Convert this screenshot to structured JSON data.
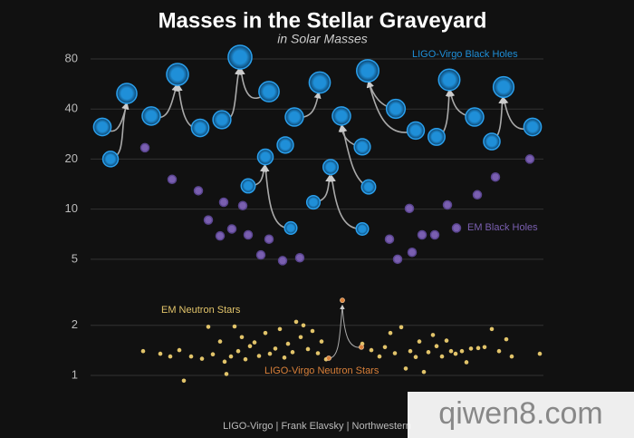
{
  "chart_data": {
    "type": "scatter",
    "title": "Masses in the Stellar Graveyard",
    "subtitle": "in Solar Masses",
    "log_y": true,
    "grid": true,
    "xlim": [
      0,
      100
    ],
    "ylim": [
      1,
      80
    ],
    "yticks": [
      1,
      2,
      5,
      10,
      20,
      40,
      80
    ],
    "series": [
      {
        "name": "LIGO-Virgo Black Holes",
        "color": "#1f8fd8",
        "x": [
          2.6,
          4.4,
          8,
          13.4,
          19.2,
          24.2,
          29,
          33,
          39.4,
          43,
          45,
          50.6,
          55.4,
          60,
          61.2,
          67.4,
          71.8,
          76.4,
          79.2,
          84.8,
          88.6,
          91.2,
          97.6,
          38.6,
          53,
          34.8,
          61.4,
          44.2,
          49.2,
          60
        ],
        "values": [
          31.2,
          20,
          49.6,
          36.3,
          64.6,
          30.8,
          34.5,
          82,
          50.9,
          24.3,
          35.8,
          57.7,
          36.3,
          23.7,
          67.9,
          40.1,
          29.7,
          27.2,
          59.9,
          35.8,
          25.5,
          54.2,
          31.2,
          20.6,
          17.9,
          13.8,
          13.6,
          7.7,
          11,
          7.6
        ]
      },
      {
        "name": "EM Black Holes",
        "color": "#7a5fb0",
        "x": [
          12,
          18,
          23.8,
          29.4,
          26,
          28.6,
          31.2,
          33.6,
          34.8,
          37.6,
          39.4,
          42.4,
          46.2,
          66,
          67.8,
          71,
          70.4,
          73.2,
          76,
          78.8,
          80.8,
          85.4,
          89.4,
          97
        ],
        "values": [
          23.4,
          15.1,
          12.9,
          11,
          8.6,
          6.9,
          7.6,
          10.5,
          7,
          5.3,
          6.6,
          4.9,
          5.1,
          6.6,
          5,
          5.5,
          10.1,
          7,
          7,
          10.6,
          7.7,
          12.2,
          15.6,
          20
        ]
      },
      {
        "name": "EM Neutron Stars",
        "color": "#e2c46a",
        "x": [
          11.6,
          15.4,
          17.6,
          19.6,
          20.6,
          22.2,
          24.6,
          26,
          27,
          28.6,
          29.6,
          30,
          31,
          31.8,
          32.6,
          33.4,
          34.2,
          35.2,
          36.2,
          37.2,
          38.6,
          39.6,
          40.8,
          41.8,
          42.8,
          43.6,
          44.6,
          45.4,
          46.4,
          47,
          48,
          49,
          50.2,
          51,
          52,
          60,
          62,
          63.8,
          65,
          66.2,
          67.2,
          68.6,
          69.6,
          70.6,
          71.8,
          72.6,
          73.6,
          74.6,
          75.6,
          76.4,
          77.6,
          78.6,
          79.6,
          80.6,
          82,
          83,
          84,
          85.6,
          87,
          88.6,
          90.2,
          91.8,
          93,
          99.2
        ],
        "values": [
          1.4,
          1.35,
          1.3,
          1.42,
          0.93,
          1.3,
          1.26,
          1.96,
          1.34,
          1.6,
          1.21,
          1.02,
          1.3,
          1.97,
          1.4,
          1.7,
          1.25,
          1.5,
          1.58,
          1.31,
          1.8,
          1.35,
          1.45,
          1.9,
          1.28,
          1.55,
          1.38,
          2.1,
          1.7,
          2.0,
          1.44,
          1.85,
          1.36,
          1.6,
          1.25,
          1.55,
          1.42,
          1.3,
          1.48,
          1.8,
          1.36,
          1.95,
          1.1,
          1.4,
          1.29,
          1.6,
          1.05,
          1.38,
          1.75,
          1.5,
          1.3,
          1.62,
          1.4,
          1.35,
          1.4,
          1.2,
          1.45,
          1.46,
          1.48,
          1.9,
          1.4,
          1.65,
          1.3,
          1.35
        ]
      },
      {
        "name": "LIGO-Virgo Neutron Stars",
        "color": "#d9803a",
        "x": [
          52.6,
          55.6,
          59.8
        ],
        "values": [
          1.27,
          2.83,
          1.48
        ]
      }
    ],
    "credit": "LIGO-Virgo | Frank Elavsky | Northwestern",
    "watermark": "qiwen8.com"
  }
}
